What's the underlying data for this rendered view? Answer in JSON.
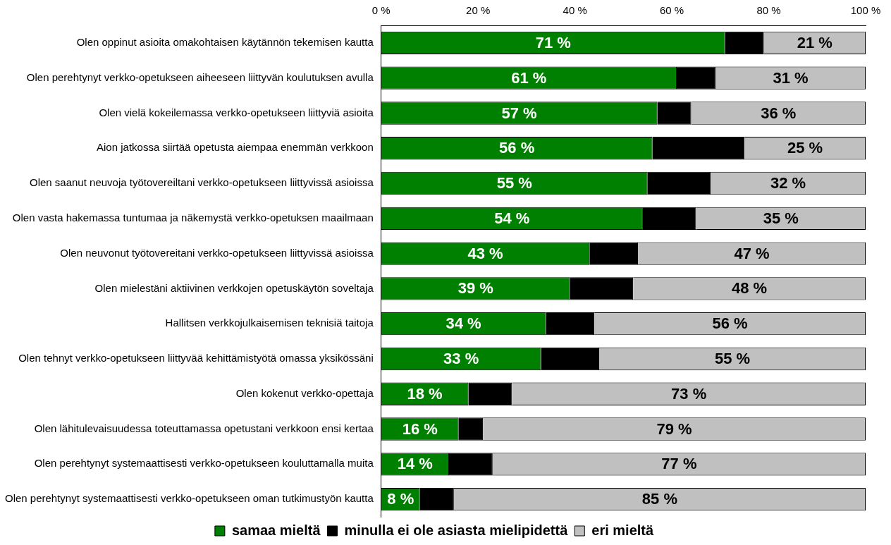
{
  "chart_data": {
    "type": "bar",
    "orientation": "horizontal",
    "stacked": true,
    "categories": [
      "Olen oppinut asioita omakohtaisen käytännön tekemisen kautta",
      "Olen perehtynyt verkko-opetukseen aiheeseen liittyvän koulutuksen avulla",
      "Olen vielä kokeilemassa verkko-opetukseen liittyviä asioita",
      "Aion jatkossa siirtää opetusta aiempaa enemmän verkkoon",
      "Olen saanut neuvoja työtovereiltani verkko-opetukseen liittyvissä asioissa",
      "Olen vasta hakemassa tuntumaa ja näkemystä verkko-opetuksen maailmaan",
      "Olen neuvonut työtovereitani verkko-opetukseen liittyvissä asioissa",
      "Olen mielestäni aktiivinen verkkojen opetuskäytön soveltaja",
      "Hallitsen verkkojulkaisemisen teknisiä taitoja",
      "Olen tehnyt verkko-opetukseen liittyvää kehittämistyötä omassa yksikössäni",
      "Olen kokenut verkko-opettaja",
      "Olen lähitulevaisuudessa toteuttamassa opetustani verkkoon ensi kertaa",
      "Olen perehtynyt systemaattisesti verkko-opetukseen kouluttamalla muita",
      "Olen perehtynyt systemaattisesti verkko-opetukseen oman tutkimustyön kautta"
    ],
    "series": [
      {
        "name": "samaa mieltä",
        "color": "#008000",
        "values": [
          71,
          61,
          57,
          56,
          55,
          54,
          43,
          39,
          34,
          33,
          18,
          16,
          14,
          8
        ],
        "value_labels": [
          "71 %",
          "61 %",
          "57 %",
          "56 %",
          "55 %",
          "54 %",
          "43 %",
          "39 %",
          "34 %",
          "33 %",
          "18 %",
          "16 %",
          "14 %",
          "8 %"
        ]
      },
      {
        "name": "minulla ei ole asiasta mielipidettä",
        "color": "#000000",
        "values": [
          8,
          8,
          7,
          19,
          13,
          11,
          10,
          13,
          10,
          12,
          9,
          5,
          9,
          7
        ]
      },
      {
        "name": "eri mieltä",
        "color": "#c0c0c0",
        "values": [
          21,
          31,
          36,
          25,
          32,
          35,
          47,
          48,
          56,
          55,
          73,
          79,
          77,
          85
        ],
        "value_labels": [
          "21 %",
          "31 %",
          "36 %",
          "25 %",
          "32 %",
          "35 %",
          "47 %",
          "48 %",
          "56 %",
          "55 %",
          "73 %",
          "79 %",
          "77 %",
          "85 %"
        ]
      }
    ],
    "xlim": [
      0,
      100
    ],
    "xticks": [
      {
        "value": 0,
        "label": "0 %"
      },
      {
        "value": 20,
        "label": "20 %"
      },
      {
        "value": 40,
        "label": "40 %"
      },
      {
        "value": 60,
        "label": "60 %"
      },
      {
        "value": 80,
        "label": "80 %"
      },
      {
        "value": 100,
        "label": "100 %"
      }
    ],
    "grid": false,
    "legend": "bottom"
  }
}
